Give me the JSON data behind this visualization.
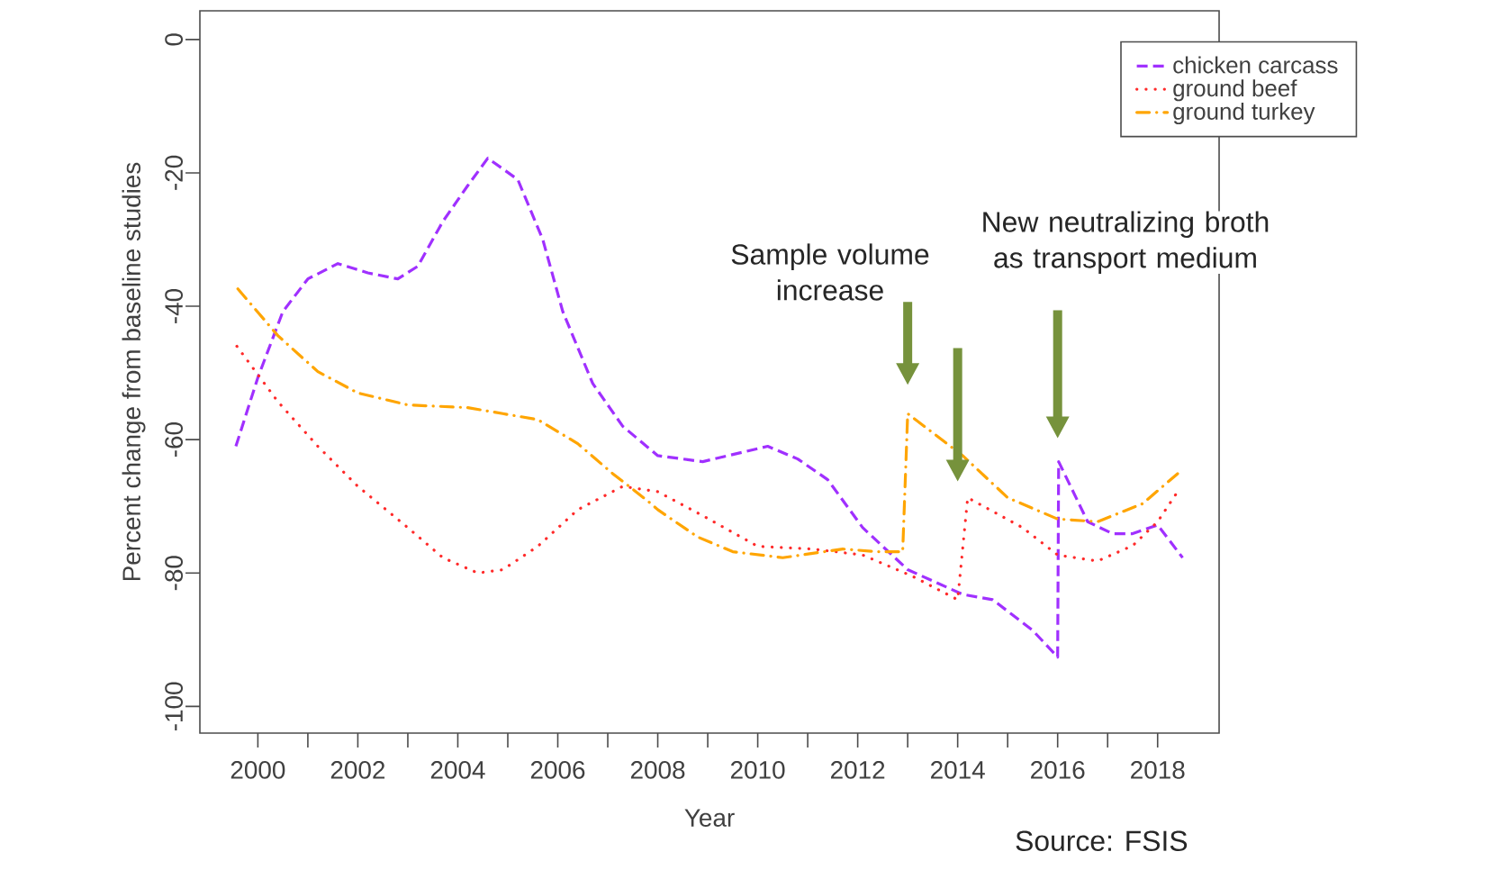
{
  "chart_data": {
    "type": "line",
    "xlabel": "Year",
    "ylabel": "Percent change from baseline studies",
    "xlim": [
      1998.84,
      2019.23
    ],
    "ylim": [
      -104,
      4.3
    ],
    "xticks": [
      2000,
      {
        "value": 2001,
        "label": null
      },
      2002,
      {
        "value": 2003,
        "label": null
      },
      2004,
      {
        "value": 2005,
        "label": null
      },
      2006,
      {
        "value": 2007,
        "label": null
      },
      2008,
      {
        "value": 2009,
        "label": null
      },
      2010,
      {
        "value": 2011,
        "label": null
      },
      2012,
      {
        "value": 2013,
        "label": null
      },
      2014,
      {
        "value": 2015,
        "label": null
      },
      2016,
      {
        "value": 2017,
        "label": null
      },
      2018
    ],
    "yticks": [
      0,
      -20,
      -40,
      -60,
      -80,
      -100
    ],
    "grid": false,
    "legend": "top right",
    "marker": "none",
    "series": [
      {
        "name": "chicken carcass",
        "color": "#a030ff",
        "line_style": "dashed",
        "x": [
          1999.56,
          2000,
          2000.5,
          2001,
          2001.6,
          2002.2,
          2002.8,
          2003.2,
          2003.7,
          2004.2,
          2004.6,
          2005.2,
          2005.7,
          2006.1,
          2006.7,
          2007.3,
          2008,
          2008.9,
          2010.2,
          2010.8,
          2011.4,
          2012.1,
          2013,
          2014.1,
          2014.7,
          2015.5,
          2016,
          2016.02,
          2016.6,
          2017.1,
          2017.5,
          2018,
          2018.5
        ],
        "values": [
          -61,
          -50.7,
          -40.8,
          -35.9,
          -33.6,
          -35,
          -35.9,
          -34,
          -27.3,
          -21.9,
          -17.8,
          -21,
          -30,
          -40.8,
          -51.6,
          -58,
          -62.4,
          -63.3,
          -61,
          -62.9,
          -66,
          -73.2,
          -79.5,
          -83.2,
          -84,
          -88.6,
          -92.6,
          -63.3,
          -72.3,
          -74.1,
          -74.1,
          -72.8,
          -77.7
        ]
      },
      {
        "name": "ground beef",
        "color": "#ff2a2a",
        "line_style": "dotted",
        "x": [
          1999.58,
          2000.4,
          2001.2,
          2002,
          2003,
          2003.7,
          2004.4,
          2004.9,
          2005.6,
          2006.4,
          2007.3,
          2008,
          2008.9,
          2010,
          2011.1,
          2012.1,
          2013.1,
          2014,
          2014.2,
          2015.3,
          2016,
          2016.8,
          2017.5,
          2018,
          2018.4
        ],
        "values": [
          -46,
          -54.3,
          -61,
          -67,
          -73.2,
          -77.7,
          -80,
          -79.5,
          -76,
          -70.5,
          -67,
          -67.8,
          -71.4,
          -76,
          -76.4,
          -77.3,
          -80.5,
          -84,
          -68.7,
          -73.2,
          -77.3,
          -78.2,
          -75.9,
          -72.3,
          -67.8
        ]
      },
      {
        "name": "ground turkey",
        "color": "#ffa500",
        "line_style": "dashdot",
        "x": [
          1999.6,
          2000.4,
          2001.2,
          2002,
          2003,
          2004.2,
          2004.9,
          2005.6,
          2006.4,
          2007.1,
          2007.8,
          2008,
          2008.8,
          2009.5,
          2010.5,
          2011.7,
          2012.4,
          2012.9,
          2013,
          2014.1,
          2015,
          2016,
          2016.8,
          2017.7,
          2018.4
        ],
        "values": [
          -37.4,
          -44.4,
          -49.8,
          -53,
          -54.8,
          -55.2,
          -56.1,
          -57,
          -60.6,
          -65.1,
          -69.2,
          -70.5,
          -74.6,
          -76.8,
          -77.7,
          -76.4,
          -76.8,
          -76.8,
          -56.1,
          -62.4,
          -68.7,
          -71.9,
          -72.3,
          -69.6,
          -65.1
        ]
      }
    ],
    "annotations": [
      "Sample volume increase",
      "New neutralizing broth as transport medium",
      "Source: FSIS"
    ]
  }
}
